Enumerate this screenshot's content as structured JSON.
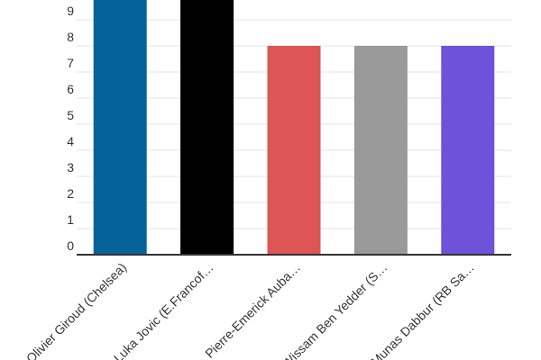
{
  "chart_data": {
    "type": "bar",
    "categories": [
      "Olivier Giroud (Chelsea)",
      "Luka Jovic (E.Francof…",
      "Pierre-Emerick Auba…",
      "Wissam Ben Yedder (S…",
      "Munas Dabbur (RB Sa…"
    ],
    "values": [
      10,
      10,
      8,
      8,
      8
    ],
    "colors": [
      "#05639a",
      "#000000",
      "#dd5555",
      "#999999",
      "#6e52d9"
    ],
    "y_tick_labels": [
      "0",
      "1",
      "2",
      "3",
      "4",
      "5",
      "6",
      "7",
      "8",
      "9"
    ],
    "ylim": [
      0,
      10
    ],
    "grid": true,
    "title": "",
    "xlabel": "",
    "ylabel": ""
  }
}
